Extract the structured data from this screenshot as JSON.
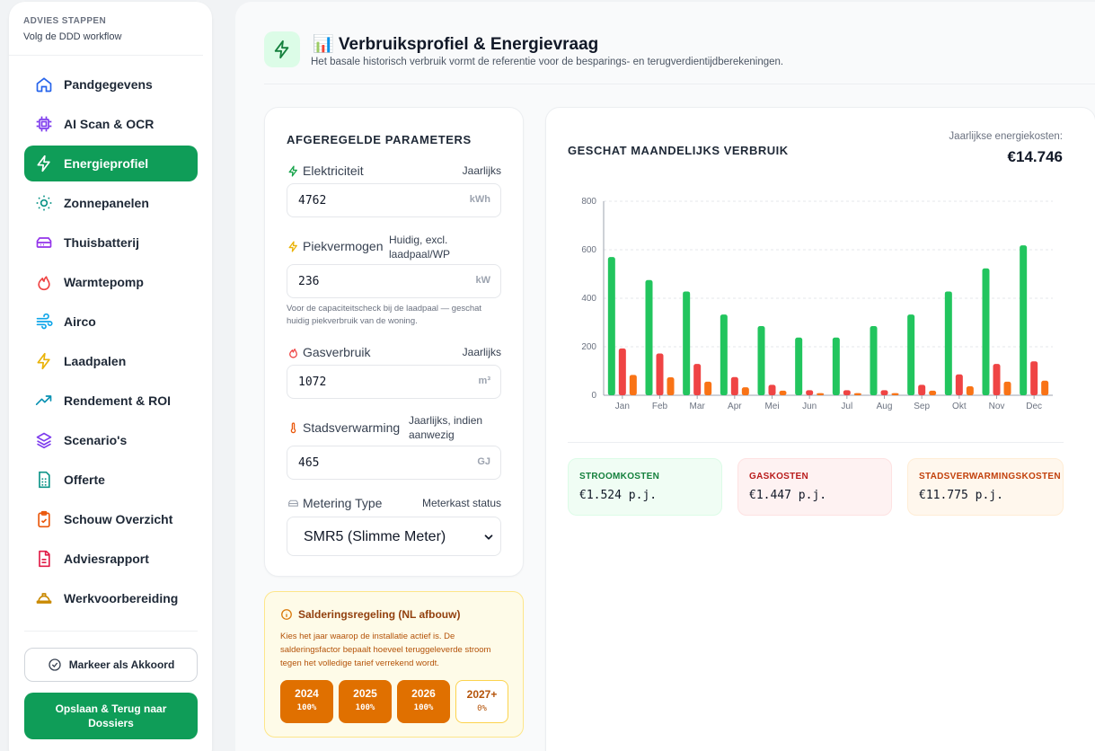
{
  "sidebar": {
    "title": "ADVIES STAPPEN",
    "subtitle": "Volg de DDD workflow",
    "items": [
      {
        "label": "Pandgegevens",
        "icon": "home-icon",
        "color": "#2563eb"
      },
      {
        "label": "AI Scan & OCR",
        "icon": "cpu-icon",
        "color": "#7c3aed"
      },
      {
        "label": "Energieprofiel",
        "icon": "bolt-icon",
        "color": "#ffffff"
      },
      {
        "label": "Zonnepanelen",
        "icon": "sun-icon",
        "color": "#0d9488"
      },
      {
        "label": "Thuisbatterij",
        "icon": "battery-icon",
        "color": "#9333ea"
      },
      {
        "label": "Warmtepomp",
        "icon": "flame-icon",
        "color": "#ef4444"
      },
      {
        "label": "Airco",
        "icon": "wind-icon",
        "color": "#0ea5e9"
      },
      {
        "label": "Laadpalen",
        "icon": "zap-icon",
        "color": "#eab308"
      },
      {
        "label": "Rendement & ROI",
        "icon": "trend-icon",
        "color": "#0891b2"
      },
      {
        "label": "Scenario's",
        "icon": "layers-icon",
        "color": "#7c3aed"
      },
      {
        "label": "Offerte",
        "icon": "calc-icon",
        "color": "#0d9488"
      },
      {
        "label": "Schouw Overzicht",
        "icon": "clipboard-icon",
        "color": "#ea580c"
      },
      {
        "label": "Adviesrapport",
        "icon": "file-icon",
        "color": "#e11d48"
      },
      {
        "label": "Werkvoorbereiding",
        "icon": "helmet-icon",
        "color": "#ca8a04"
      }
    ],
    "mark_label": "Markeer als Akkoord",
    "save_label": "Opslaan & Terug naar Dossiers"
  },
  "header": {
    "title": "📊 Verbruiksprofiel & Energievraag",
    "subtitle": "Het basale historisch verbruik vormt de referentie voor de besparings- en terugverdientijdberekeningen."
  },
  "params": {
    "title": "AFGEREGELDE PARAMETERS",
    "elec": {
      "label": "Elektriciteit",
      "hint": "Jaarlijks",
      "value": "4762",
      "unit": "kWh"
    },
    "peak": {
      "label": "Piekvermogen",
      "hint": "Huidig, excl. laadpaal/WP",
      "value": "236",
      "unit": "kW",
      "note": "Voor de capaciteitscheck bij de laadpaal — geschat huidig piekverbruik van de woning."
    },
    "gas": {
      "label": "Gasverbruik",
      "hint": "Jaarlijks",
      "value": "1072",
      "unit": "m³"
    },
    "heat": {
      "label": "Stadsverwarming",
      "hint": "Jaarlijks, indien aanwezig",
      "value": "465",
      "unit": "GJ"
    },
    "meter": {
      "label": "Metering Type",
      "hint": "Meterkast status",
      "value": "SMR5 (Slimme Meter)"
    }
  },
  "saldering": {
    "title": "Salderingsregeling (NL afbouw)",
    "text": "Kies het jaar waarop de installatie actief is. De salderingsfactor bepaalt hoeveel teruggeleverde stroom tegen het volledige tarief verrekend wordt.",
    "years": [
      {
        "year": "2024",
        "pct": "100%",
        "selected": true
      },
      {
        "year": "2025",
        "pct": "100%",
        "selected": true
      },
      {
        "year": "2026",
        "pct": "100%",
        "selected": true
      },
      {
        "year": "2027+",
        "pct": "0%",
        "selected": false
      }
    ]
  },
  "chart_card": {
    "title": "GESCHAT MAANDELIJKS VERBRUIK",
    "cost_label": "Jaarlijkse energiekosten:",
    "cost_value": "€14.746"
  },
  "chart_data": {
    "type": "bar",
    "categories": [
      "Jan",
      "Feb",
      "Mar",
      "Apr",
      "Mei",
      "Jun",
      "Jul",
      "Aug",
      "Sep",
      "Okt",
      "Nov",
      "Dec"
    ],
    "series": [
      {
        "values": [
          570,
          475,
          428,
          333,
          285,
          238,
          238,
          285,
          333,
          428,
          523,
          618
        ],
        "color": "#22c55e"
      },
      {
        "values": [
          193,
          172,
          129,
          75,
          43,
          21,
          21,
          21,
          43,
          86,
          129,
          140
        ],
        "color": "#ef4444"
      },
      {
        "values": [
          84,
          74,
          56,
          33,
          19,
          9,
          9,
          9,
          19,
          37,
          56,
          60
        ],
        "color": "#f97316"
      }
    ],
    "ylim": [
      0,
      800
    ],
    "yticks": [
      0,
      200,
      400,
      600,
      800
    ],
    "grid": true
  },
  "kpis": [
    {
      "label": "STROOMKOSTEN",
      "value": "€1.524 p.j."
    },
    {
      "label": "GASKOSTEN",
      "value": "€1.447 p.j."
    },
    {
      "label": "STADSVERWARMINGSKOSTEN",
      "value": "€11.775 p.j."
    }
  ]
}
